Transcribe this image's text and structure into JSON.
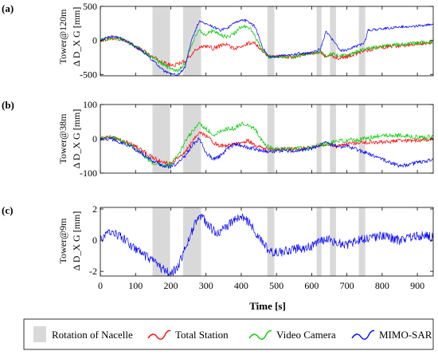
{
  "colors": {
    "shade": "#d9d9d9",
    "total_station": "#ff0000",
    "video_camera": "#00cc00",
    "mimo_sar": "#0000ff"
  },
  "x_axis": {
    "label": "Time [s]",
    "ticks": [
      0,
      100,
      200,
      300,
      400,
      500,
      600,
      700,
      800,
      900
    ],
    "lim": [
      0,
      945
    ]
  },
  "legend": {
    "items": [
      "Rotation of Nacelle",
      "Total Station",
      "Video Camera",
      "MIMO-SAR"
    ]
  },
  "chart_data": [
    {
      "type": "line",
      "panel_label": "(a)",
      "ylabel_line1": "Tower@120m",
      "ylabel_line2": "Δ D_X G [mm]",
      "ylim": [
        -520,
        500
      ],
      "yticks": [
        -500,
        0,
        500
      ],
      "shaded_intervals": [
        [
          148,
          198
        ],
        [
          235,
          286
        ],
        [
          474,
          494
        ],
        [
          614,
          628
        ],
        [
          652,
          669
        ],
        [
          734,
          752
        ]
      ],
      "series": [
        {
          "name": "Total Station",
          "x": [
            0,
            30,
            60,
            90,
            120,
            150,
            180,
            200,
            220,
            240,
            260,
            280,
            300,
            320,
            340,
            360,
            380,
            400,
            420,
            440,
            460,
            480,
            500,
            550,
            600,
            625,
            640,
            655,
            680,
            700,
            750,
            800,
            850,
            900,
            945
          ],
          "y": [
            0,
            40,
            20,
            -60,
            -150,
            -250,
            -330,
            -370,
            -350,
            -300,
            -200,
            -100,
            -80,
            -120,
            -80,
            -60,
            -120,
            -100,
            -40,
            -40,
            -150,
            -240,
            -230,
            -240,
            -180,
            -170,
            -240,
            -220,
            -260,
            -240,
            -150,
            -100,
            -80,
            -50,
            -30
          ],
          "noise_amplitude": 30
        },
        {
          "name": "Video Camera",
          "x": [
            0,
            30,
            60,
            90,
            120,
            150,
            180,
            200,
            220,
            240,
            260,
            280,
            300,
            320,
            340,
            360,
            380,
            400,
            420,
            440,
            460,
            480,
            500,
            550,
            600,
            625,
            640,
            655,
            680,
            700,
            750,
            800,
            850,
            900,
            945
          ],
          "y": [
            0,
            40,
            20,
            -60,
            -150,
            -260,
            -350,
            -420,
            -440,
            -350,
            -50,
            150,
            80,
            150,
            80,
            50,
            100,
            200,
            210,
            50,
            -150,
            -250,
            -230,
            -240,
            -180,
            -170,
            -240,
            -200,
            -230,
            -220,
            -130,
            -80,
            -60,
            -40,
            -20
          ],
          "noise_amplitude": 30
        },
        {
          "name": "MIMO-SAR",
          "x": [
            0,
            30,
            60,
            90,
            120,
            150,
            180,
            200,
            220,
            240,
            260,
            280,
            300,
            320,
            340,
            360,
            380,
            400,
            420,
            440,
            460,
            480,
            500,
            550,
            600,
            625,
            640,
            655,
            680,
            700,
            750,
            760,
            800,
            850,
            900,
            945
          ],
          "y": [
            0,
            60,
            30,
            -60,
            -160,
            -300,
            -450,
            -500,
            -510,
            -400,
            20,
            280,
            250,
            200,
            150,
            180,
            250,
            300,
            280,
            200,
            -100,
            -250,
            -230,
            -200,
            -180,
            -120,
            130,
            40,
            -150,
            -140,
            -40,
            150,
            170,
            200,
            210,
            240
          ],
          "noise_amplitude": 20
        }
      ]
    },
    {
      "type": "line",
      "panel_label": "(b)",
      "ylabel_line1": "Tower@38m",
      "ylabel_line2": "Δ D_X G [mm]",
      "ylim": [
        -100,
        100
      ],
      "yticks": [
        -100,
        0,
        100
      ],
      "shaded_intervals": [
        [
          148,
          198
        ],
        [
          235,
          286
        ],
        [
          474,
          494
        ],
        [
          614,
          628
        ],
        [
          652,
          669
        ],
        [
          734,
          752
        ]
      ],
      "series": [
        {
          "name": "Total Station",
          "x": [
            0,
            30,
            60,
            90,
            120,
            150,
            180,
            200,
            220,
            240,
            260,
            280,
            300,
            320,
            340,
            360,
            380,
            400,
            420,
            440,
            460,
            480,
            500,
            550,
            600,
            640,
            680,
            700,
            750,
            800,
            850,
            900,
            945
          ],
          "y": [
            0,
            5,
            -5,
            -15,
            -35,
            -55,
            -70,
            -70,
            -55,
            -40,
            -10,
            20,
            10,
            -10,
            -20,
            -20,
            -15,
            -10,
            -5,
            -20,
            -25,
            -30,
            -30,
            -30,
            -25,
            -15,
            -20,
            -15,
            -10,
            -10,
            -5,
            -5,
            0
          ],
          "noise_amplitude": 6
        },
        {
          "name": "Video Camera",
          "x": [
            0,
            30,
            60,
            90,
            120,
            150,
            180,
            200,
            220,
            240,
            260,
            280,
            300,
            320,
            340,
            360,
            380,
            400,
            420,
            440,
            460,
            480,
            500,
            550,
            600,
            640,
            680,
            700,
            750,
            800,
            850,
            900,
            945
          ],
          "y": [
            0,
            5,
            -5,
            -20,
            -45,
            -70,
            -80,
            -75,
            -50,
            -10,
            20,
            45,
            30,
            10,
            20,
            30,
            30,
            45,
            40,
            30,
            -10,
            -25,
            -30,
            -30,
            -25,
            -15,
            -5,
            -5,
            0,
            10,
            10,
            5,
            5
          ],
          "noise_amplitude": 7
        },
        {
          "name": "MIMO-SAR",
          "x": [
            0,
            30,
            60,
            90,
            120,
            150,
            180,
            200,
            220,
            240,
            260,
            280,
            300,
            320,
            340,
            360,
            380,
            400,
            420,
            440,
            460,
            480,
            500,
            550,
            600,
            640,
            680,
            700,
            750,
            800,
            850,
            900,
            945
          ],
          "y": [
            0,
            0,
            -10,
            -25,
            -45,
            -65,
            -80,
            -80,
            -70,
            -50,
            -20,
            0,
            -40,
            -60,
            -50,
            -30,
            -15,
            -20,
            -25,
            -30,
            -35,
            -40,
            -35,
            -35,
            -30,
            -10,
            -25,
            -20,
            -40,
            -60,
            -80,
            -70,
            -60
          ],
          "noise_amplitude": 6
        }
      ]
    },
    {
      "type": "line",
      "panel_label": "(c)",
      "ylabel_line1": "Tower@9m",
      "ylabel_line2": "Δ D_X G [mm]",
      "ylim": [
        -2.3,
        2.1
      ],
      "yticks": [
        -2,
        0,
        2
      ],
      "shaded_intervals": [
        [
          148,
          198
        ],
        [
          235,
          286
        ],
        [
          474,
          494
        ],
        [
          614,
          628
        ],
        [
          652,
          669
        ],
        [
          734,
          752
        ]
      ],
      "series": [
        {
          "name": "MIMO-SAR",
          "x": [
            0,
            30,
            60,
            90,
            120,
            150,
            180,
            200,
            220,
            240,
            260,
            280,
            300,
            320,
            340,
            360,
            380,
            400,
            420,
            440,
            460,
            480,
            500,
            550,
            600,
            640,
            680,
            700,
            750,
            800,
            850,
            900,
            945
          ],
          "y": [
            0,
            0.6,
            0.2,
            -0.4,
            -0.9,
            -1.4,
            -1.9,
            -2.2,
            -1.7,
            -0.6,
            0.6,
            1.6,
            1.2,
            0.6,
            0.5,
            0.9,
            1.3,
            1.5,
            1.2,
            0.5,
            -0.2,
            -0.7,
            -0.8,
            -0.6,
            -0.4,
            0.1,
            -0.2,
            -0.3,
            0.1,
            0.3,
            0.0,
            0.3,
            0.2
          ],
          "noise_amplitude": 0.3
        }
      ]
    }
  ]
}
